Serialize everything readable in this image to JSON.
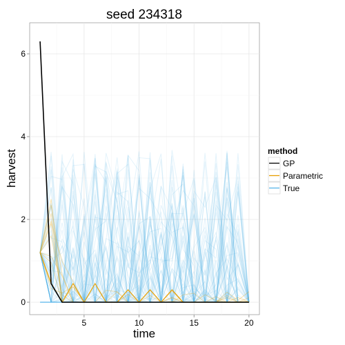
{
  "chart_data": {
    "type": "line",
    "title": "seed 234318",
    "xlabel": "time",
    "ylabel": "harvest",
    "xlim": [
      0.05,
      20.95
    ],
    "ylim": [
      -0.3,
      6.75
    ],
    "x_ticks": [
      5,
      10,
      15,
      20
    ],
    "y_ticks": [
      0,
      2,
      4,
      6
    ],
    "grid": true,
    "legend": {
      "title": "method",
      "position": "right",
      "entries": [
        {
          "name": "GP",
          "color": "#000000"
        },
        {
          "name": "Parametric",
          "color": "#E69F00"
        },
        {
          "name": "True",
          "color": "#56B4E9"
        }
      ]
    },
    "series": [
      {
        "name": "GP",
        "color": "#000000",
        "x": [
          1,
          2,
          3,
          4,
          5,
          6,
          7,
          8,
          9,
          10,
          11,
          12,
          13,
          14,
          15,
          16,
          17,
          18,
          19,
          20
        ],
        "y": [
          6.3,
          0.45,
          0,
          0,
          0,
          0,
          0,
          0,
          0,
          0,
          0,
          0,
          0,
          0,
          0,
          0,
          0,
          0,
          0,
          0
        ]
      },
      {
        "name": "Parametric",
        "color": "#E69F00",
        "x": [
          1,
          2,
          3,
          4,
          5,
          6,
          7,
          8,
          9,
          10,
          11,
          12,
          13,
          14,
          15,
          16,
          17,
          18,
          19,
          20
        ],
        "y": [
          1.2,
          0.45,
          0,
          0.45,
          0,
          0.45,
          0,
          0,
          0.3,
          0,
          0.3,
          0,
          0.3,
          0,
          0,
          0,
          0,
          0,
          0,
          0
        ]
      },
      {
        "name": "True",
        "color": "#56B4E9",
        "x": [
          1,
          2,
          3,
          4,
          5,
          6,
          7,
          8,
          9,
          10,
          11,
          12,
          13,
          14,
          15,
          16,
          17,
          18,
          19,
          20
        ],
        "y": [
          0,
          0,
          0,
          0,
          0,
          0,
          0,
          0,
          0,
          0,
          0,
          0,
          0,
          0,
          0,
          0,
          0,
          0,
          0,
          0
        ]
      }
    ]
  }
}
